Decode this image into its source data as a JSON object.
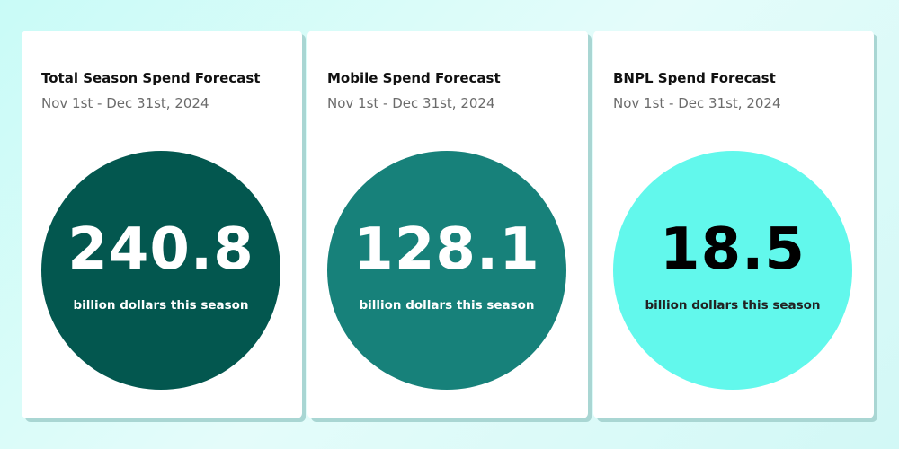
{
  "cards": [
    {
      "title": "Total Season Spend Forecast",
      "subtitle": "Nov 1st - Dec 31st, 2024",
      "value": "240.8",
      "caption": "billion dollars this season"
    },
    {
      "title": "Mobile Spend Forecast",
      "subtitle": "Nov 1st - Dec 31st, 2024",
      "value": "128.1",
      "caption": "billion dollars this season"
    },
    {
      "title": "BNPL Spend Forecast",
      "subtitle": "Nov 1st - Dec 31st, 2024",
      "value": "18.5",
      "caption": "billion dollars this season"
    }
  ]
}
